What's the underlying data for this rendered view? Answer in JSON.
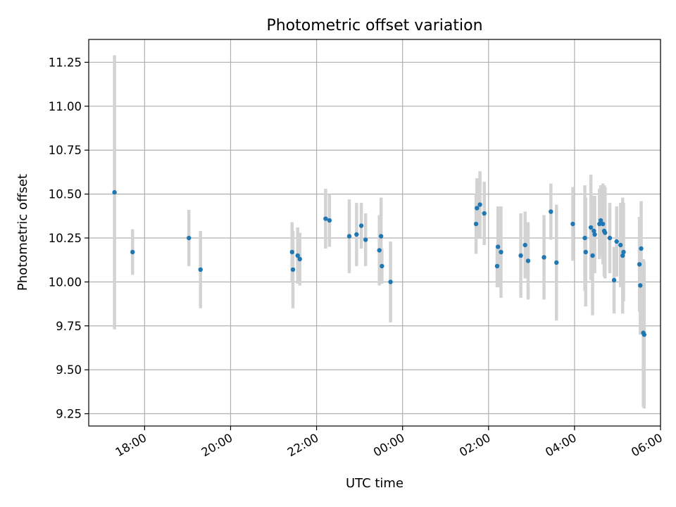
{
  "chart_data": {
    "type": "scatter",
    "title": "Photometric offset variation",
    "xlabel": "UTC time",
    "ylabel": "Photometric offset",
    "x_unit": "hours after 00:00 (negative = previous day)",
    "xlim": [
      -7.3,
      6.0
    ],
    "ylim": [
      9.18,
      11.38
    ],
    "x_ticks": [
      {
        "value": -6,
        "label": "18:00"
      },
      {
        "value": -4,
        "label": "20:00"
      },
      {
        "value": -2,
        "label": "22:00"
      },
      {
        "value": 0,
        "label": "00:00"
      },
      {
        "value": 2,
        "label": "02:00"
      },
      {
        "value": 4,
        "label": "04:00"
      },
      {
        "value": 6,
        "label": "06:00"
      }
    ],
    "y_ticks": [
      {
        "value": 9.25,
        "label": "9.25"
      },
      {
        "value": 9.5,
        "label": "9.50"
      },
      {
        "value": 9.75,
        "label": "9.75"
      },
      {
        "value": 10.0,
        "label": "10.00"
      },
      {
        "value": 10.25,
        "label": "10.25"
      },
      {
        "value": 10.5,
        "label": "10.50"
      },
      {
        "value": 10.75,
        "label": "10.75"
      },
      {
        "value": 11.0,
        "label": "11.00"
      },
      {
        "value": 11.25,
        "label": "11.25"
      }
    ],
    "grid": true,
    "colors": {
      "point": "#1f77b4",
      "errorbar": "#d3d3d3"
    },
    "points": [
      {
        "x": -6.7,
        "y": 10.51,
        "err": 0.78
      },
      {
        "x": -6.28,
        "y": 10.17,
        "err": 0.13
      },
      {
        "x": -4.97,
        "y": 10.25,
        "err": 0.16
      },
      {
        "x": -4.7,
        "y": 10.07,
        "err": 0.22
      },
      {
        "x": -2.57,
        "y": 10.17,
        "err": 0.17
      },
      {
        "x": -2.55,
        "y": 10.07,
        "err": 0.22
      },
      {
        "x": -2.44,
        "y": 10.15,
        "err": 0.16
      },
      {
        "x": -2.39,
        "y": 10.13,
        "err": 0.15
      },
      {
        "x": -1.79,
        "y": 10.36,
        "err": 0.17
      },
      {
        "x": -1.7,
        "y": 10.35,
        "err": 0.15
      },
      {
        "x": -1.24,
        "y": 10.26,
        "err": 0.21
      },
      {
        "x": -1.07,
        "y": 10.27,
        "err": 0.18
      },
      {
        "x": -0.96,
        "y": 10.32,
        "err": 0.13
      },
      {
        "x": -0.86,
        "y": 10.24,
        "err": 0.15
      },
      {
        "x": -0.54,
        "y": 10.18,
        "err": 0.2
      },
      {
        "x": -0.5,
        "y": 10.26,
        "err": 0.22
      },
      {
        "x": -0.48,
        "y": 10.09,
        "err": 0.1
      },
      {
        "x": -0.28,
        "y": 10.0,
        "err": 0.23
      },
      {
        "x": 1.71,
        "y": 10.33,
        "err": 0.17
      },
      {
        "x": 1.73,
        "y": 10.42,
        "err": 0.17
      },
      {
        "x": 1.8,
        "y": 10.44,
        "err": 0.19
      },
      {
        "x": 1.9,
        "y": 10.39,
        "err": 0.18
      },
      {
        "x": 2.2,
        "y": 10.09,
        "err": 0.12
      },
      {
        "x": 2.22,
        "y": 10.2,
        "err": 0.23
      },
      {
        "x": 2.29,
        "y": 10.17,
        "err": 0.26
      },
      {
        "x": 2.75,
        "y": 10.15,
        "err": 0.24
      },
      {
        "x": 2.85,
        "y": 10.21,
        "err": 0.19
      },
      {
        "x": 2.92,
        "y": 10.12,
        "err": 0.22
      },
      {
        "x": 3.29,
        "y": 10.14,
        "err": 0.24
      },
      {
        "x": 3.45,
        "y": 10.4,
        "err": 0.16
      },
      {
        "x": 3.58,
        "y": 10.11,
        "err": 0.33
      },
      {
        "x": 3.96,
        "y": 10.33,
        "err": 0.21
      },
      {
        "x": 4.24,
        "y": 10.25,
        "err": 0.3
      },
      {
        "x": 4.26,
        "y": 10.17,
        "err": 0.31
      },
      {
        "x": 4.38,
        "y": 10.31,
        "err": 0.3
      },
      {
        "x": 4.42,
        "y": 10.15,
        "err": 0.34
      },
      {
        "x": 4.45,
        "y": 10.29,
        "err": 0.2
      },
      {
        "x": 4.47,
        "y": 10.27,
        "err": 0.22
      },
      {
        "x": 4.58,
        "y": 10.33,
        "err": 0.2
      },
      {
        "x": 4.61,
        "y": 10.35,
        "err": 0.2
      },
      {
        "x": 4.66,
        "y": 10.33,
        "err": 0.23
      },
      {
        "x": 4.69,
        "y": 10.29,
        "err": 0.26
      },
      {
        "x": 4.71,
        "y": 10.28,
        "err": 0.26
      },
      {
        "x": 4.82,
        "y": 10.25,
        "err": 0.2
      },
      {
        "x": 4.92,
        "y": 10.01,
        "err": 0.19
      },
      {
        "x": 4.98,
        "y": 10.23,
        "err": 0.2
      },
      {
        "x": 5.07,
        "y": 10.21,
        "err": 0.24
      },
      {
        "x": 5.12,
        "y": 10.15,
        "err": 0.33
      },
      {
        "x": 5.14,
        "y": 10.17,
        "err": 0.28
      },
      {
        "x": 5.51,
        "y": 10.1,
        "err": 0.27
      },
      {
        "x": 5.53,
        "y": 9.98,
        "err": 0.28
      },
      {
        "x": 5.55,
        "y": 10.19,
        "err": 0.27
      },
      {
        "x": 5.6,
        "y": 9.71,
        "err": 0.42
      },
      {
        "x": 5.62,
        "y": 9.7,
        "err": 0.42
      }
    ]
  }
}
